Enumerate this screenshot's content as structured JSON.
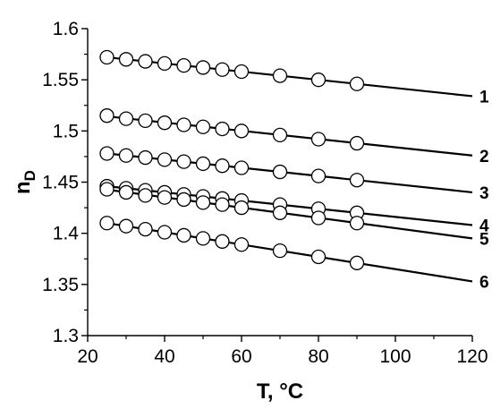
{
  "chart_data": {
    "type": "scatter",
    "xlabel": "T, °C",
    "ylabel_main": "n",
    "ylabel_sub": "D",
    "xlim": [
      20,
      120
    ],
    "ylim": [
      1.3,
      1.6
    ],
    "xticks": [
      20,
      40,
      60,
      80,
      100,
      120
    ],
    "xtick_labels": [
      "20",
      "40",
      "60",
      "80",
      "100",
      "120"
    ],
    "yticks": [
      1.3,
      1.35,
      1.4,
      1.45,
      1.5,
      1.55,
      1.6
    ],
    "ytick_labels": [
      "1.3",
      "1.35",
      "1.4",
      "1.45",
      "1.5",
      "1.55",
      "1.6"
    ],
    "grid": false,
    "marker": "open-circle",
    "fit_line_x_range": [
      25,
      120
    ],
    "series": [
      {
        "name": "1",
        "x": [
          25,
          30,
          35,
          40,
          45,
          50,
          55,
          60,
          70,
          80,
          90
        ],
        "y": [
          1.572,
          1.57,
          1.568,
          1.566,
          1.564,
          1.562,
          1.56,
          1.558,
          1.554,
          1.55,
          1.546
        ],
        "fit_y_at_120": 1.534
      },
      {
        "name": "2",
        "x": [
          25,
          30,
          35,
          40,
          45,
          50,
          55,
          60,
          70,
          80,
          90
        ],
        "y": [
          1.515,
          1.512,
          1.51,
          1.508,
          1.506,
          1.504,
          1.502,
          1.5,
          1.496,
          1.492,
          1.488
        ],
        "fit_y_at_120": 1.476
      },
      {
        "name": "3",
        "x": [
          25,
          30,
          35,
          40,
          45,
          50,
          55,
          60,
          70,
          80,
          90
        ],
        "y": [
          1.478,
          1.476,
          1.474,
          1.472,
          1.47,
          1.468,
          1.466,
          1.464,
          1.46,
          1.456,
          1.452
        ],
        "fit_y_at_120": 1.44
      },
      {
        "name": "4",
        "x": [
          25,
          30,
          35,
          40,
          45,
          50,
          55,
          60,
          70,
          80,
          90
        ],
        "y": [
          1.446,
          1.444,
          1.442,
          1.44,
          1.438,
          1.436,
          1.434,
          1.432,
          1.428,
          1.424,
          1.42
        ],
        "fit_y_at_120": 1.408
      },
      {
        "name": "5",
        "x": [
          25,
          30,
          35,
          40,
          45,
          50,
          55,
          60,
          70,
          80,
          90
        ],
        "y": [
          1.443,
          1.44,
          1.437,
          1.435,
          1.433,
          1.43,
          1.428,
          1.425,
          1.42,
          1.415,
          1.41
        ],
        "fit_y_at_120": 1.395
      },
      {
        "name": "6",
        "x": [
          25,
          30,
          35,
          40,
          45,
          50,
          55,
          60,
          70,
          80,
          90
        ],
        "y": [
          1.41,
          1.407,
          1.404,
          1.401,
          1.398,
          1.395,
          1.392,
          1.389,
          1.383,
          1.377,
          1.371
        ],
        "fit_y_at_120": 1.353
      }
    ]
  }
}
